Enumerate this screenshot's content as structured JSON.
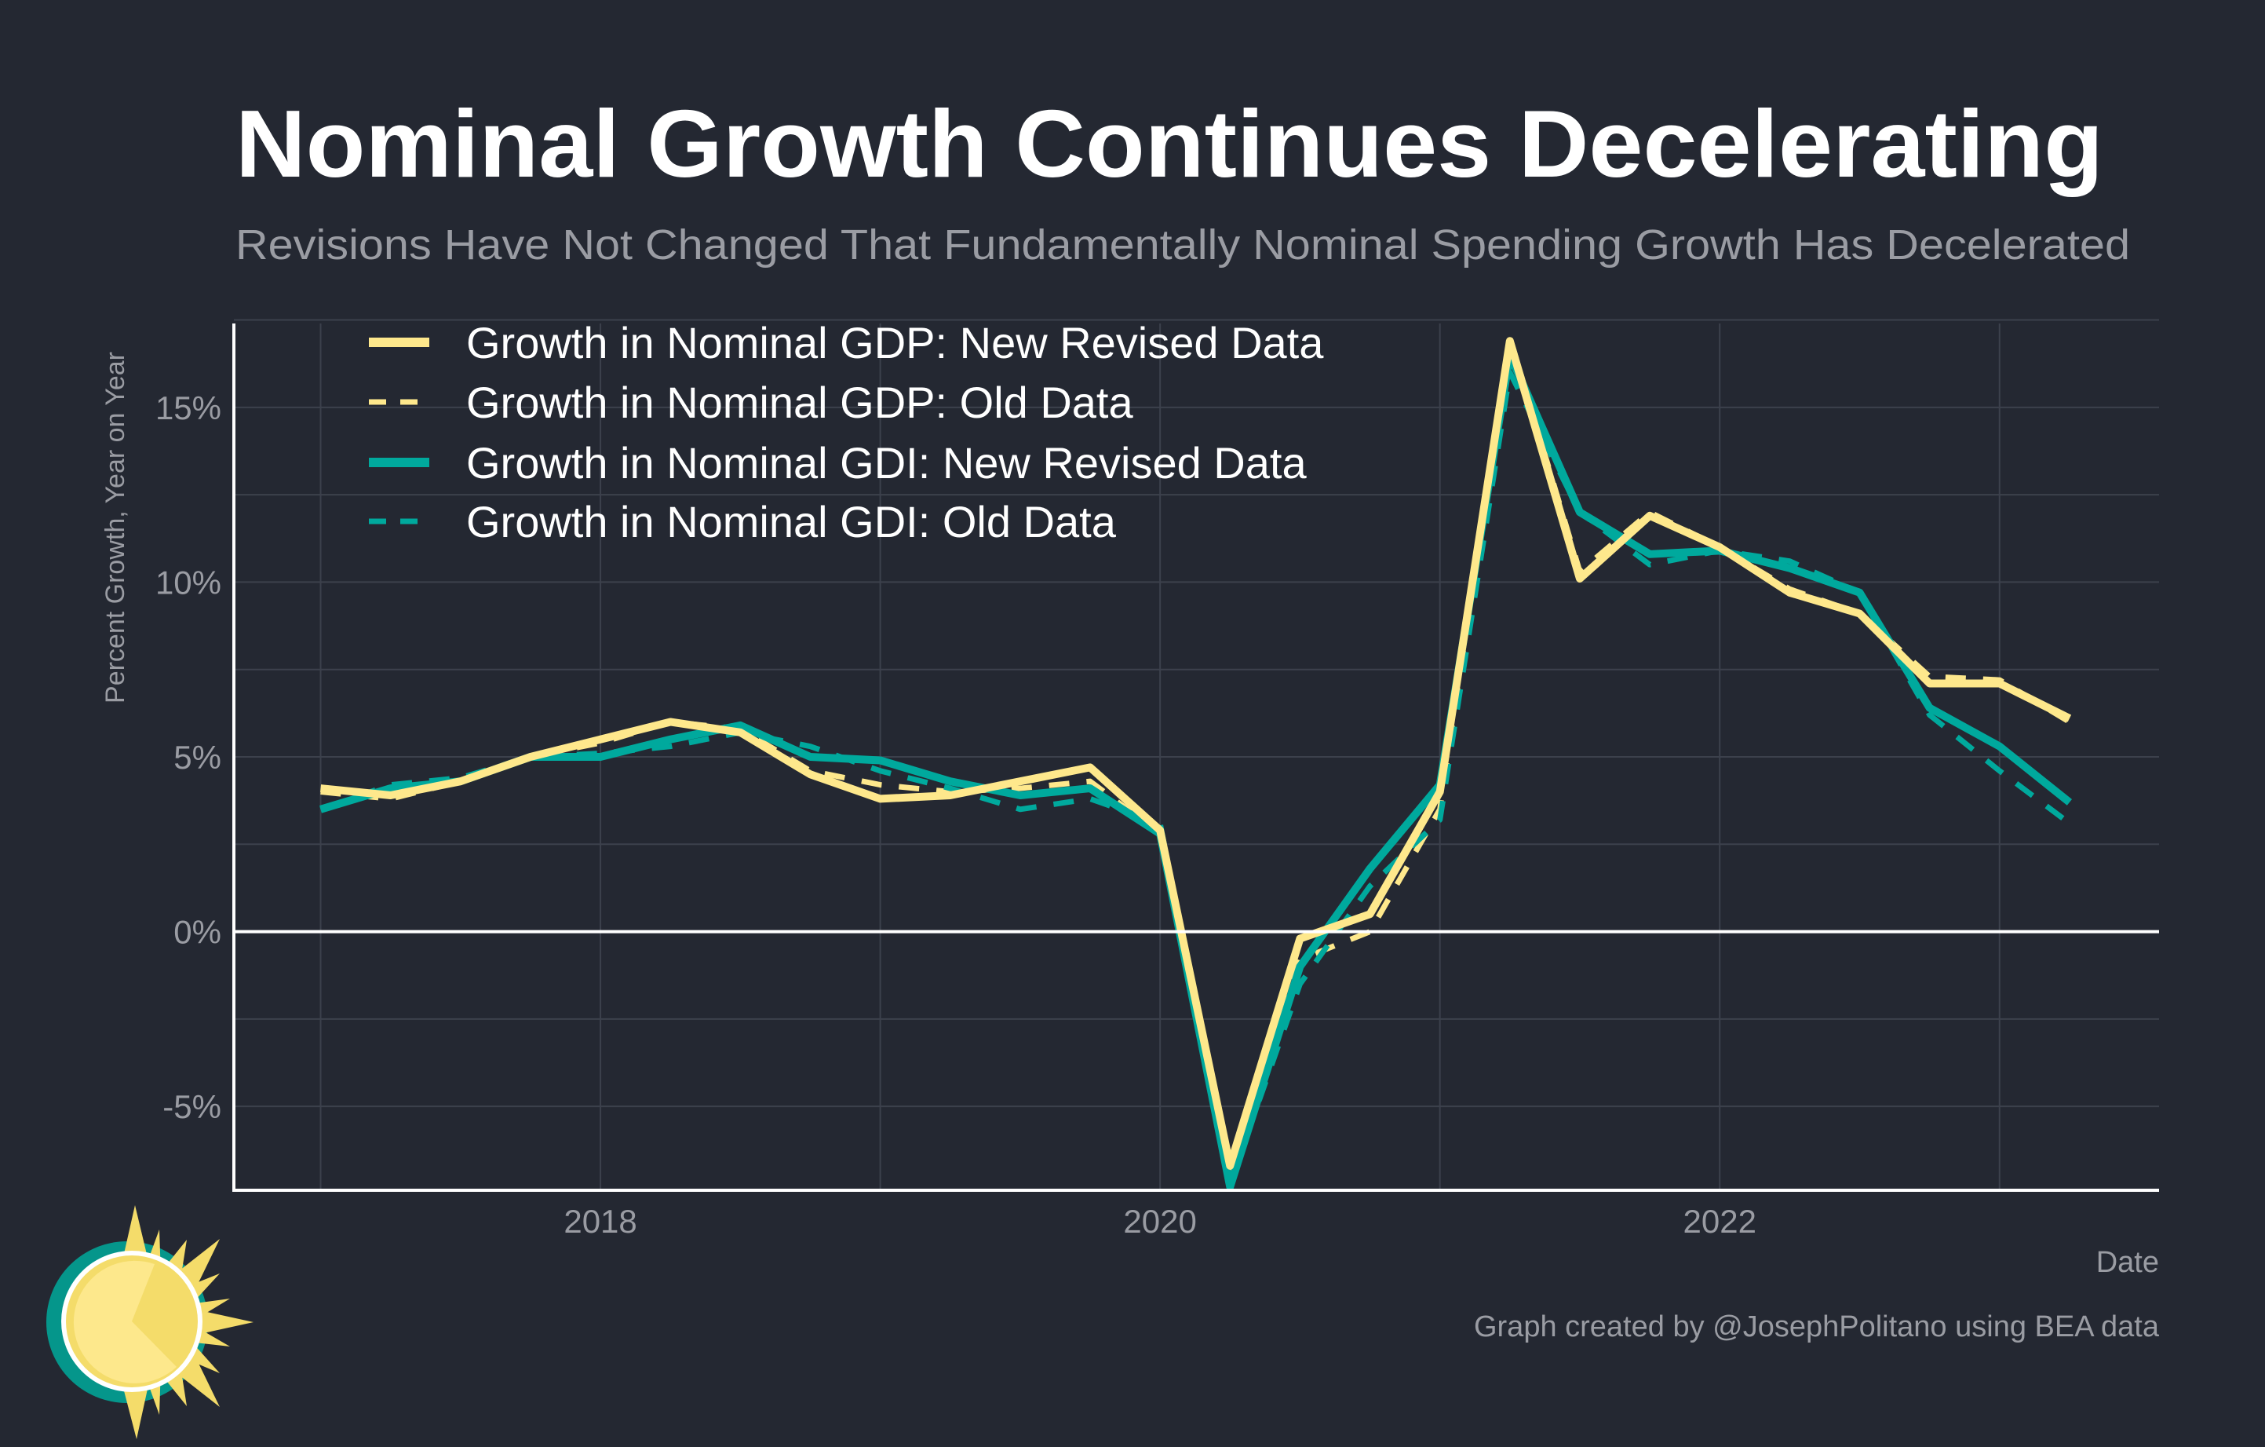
{
  "colors": {
    "background": "#242832",
    "gdp": "#FEE88C",
    "gdi": "#00A99D",
    "text": "#ffffff",
    "muted": "#9a9ca3"
  },
  "chart_data": {
    "type": "line",
    "title": "Nominal Growth Continues Decelerating",
    "subtitle": "Revisions Have Not Changed That Fundamentally Nominal Spending Growth Has Decelerated",
    "xlabel": "Date",
    "ylabel": "Percent Growth, Year on Year",
    "credit": "Graph created by @JosephPolitano using BEA data",
    "xlim": [
      2016.69,
      2023.57
    ],
    "ylim": [
      -7.4,
      17.4
    ],
    "x_ticks": [
      {
        "value": 2018,
        "label": "2018"
      },
      {
        "value": 2020,
        "label": "2020"
      },
      {
        "value": 2022,
        "label": "2022"
      }
    ],
    "y_ticks": [
      {
        "value": -5,
        "label": "-5%"
      },
      {
        "value": 0,
        "label": "0%"
      },
      {
        "value": 5,
        "label": "5%"
      },
      {
        "value": 10,
        "label": "10%"
      },
      {
        "value": 15,
        "label": "15%"
      }
    ],
    "grid": true,
    "legend_position": "top-left",
    "x": [
      "2017 Q1",
      "2017 Q2",
      "2017 Q3",
      "2017 Q4",
      "2018 Q1",
      "2018 Q2",
      "2018 Q3",
      "2018 Q4",
      "2019 Q1",
      "2019 Q2",
      "2019 Q3",
      "2019 Q4",
      "2020 Q1",
      "2020 Q2",
      "2020 Q3",
      "2020 Q4",
      "2021 Q1",
      "2021 Q2",
      "2021 Q3",
      "2021 Q4",
      "2022 Q1",
      "2022 Q2",
      "2022 Q3",
      "2022 Q4",
      "2023 Q1",
      "2023 Q2"
    ],
    "series": [
      {
        "name": "Growth in Nominal GDP: New Revised Data",
        "color": "#FEE88C",
        "dash": false,
        "values": [
          4.1,
          3.9,
          4.3,
          5.0,
          5.5,
          6.0,
          5.7,
          4.5,
          3.8,
          3.9,
          4.3,
          4.7,
          2.9,
          -6.7,
          -0.2,
          0.5,
          4.0,
          16.9,
          10.1,
          11.9,
          11.0,
          9.7,
          9.1,
          7.1,
          7.1,
          6.1
        ]
      },
      {
        "name": "Growth in Nominal GDP: Old Data",
        "color": "#FEE88C",
        "dash": true,
        "values": [
          4.0,
          3.8,
          4.3,
          5.0,
          5.4,
          6.0,
          5.8,
          4.6,
          4.2,
          4.0,
          4.1,
          4.3,
          2.8,
          -6.9,
          -0.8,
          0.0,
          3.5,
          17.0,
          10.3,
          12.0,
          11.0,
          9.8,
          9.1,
          7.3,
          7.2,
          6.0
        ]
      },
      {
        "name": "Growth in Nominal GDI: New Revised Data",
        "color": "#00A99D",
        "dash": false,
        "values": [
          3.5,
          4.1,
          4.3,
          5.0,
          5.0,
          5.5,
          5.9,
          5.0,
          4.9,
          4.3,
          3.9,
          4.1,
          2.8,
          -7.3,
          -1.0,
          1.8,
          4.2,
          16.5,
          12.0,
          10.8,
          10.9,
          10.4,
          9.7,
          6.4,
          5.3,
          3.7
        ]
      },
      {
        "name": "Growth in Nominal GDI: Old Data",
        "color": "#00A99D",
        "dash": true,
        "values": [
          3.5,
          4.2,
          4.4,
          5.0,
          5.1,
          5.3,
          5.7,
          5.3,
          4.6,
          4.1,
          3.5,
          3.8,
          3.1,
          -7.2,
          -1.5,
          1.3,
          3.2,
          16.0,
          12.0,
          10.5,
          10.9,
          10.6,
          9.7,
          6.2,
          4.6,
          3.1
        ]
      }
    ]
  }
}
